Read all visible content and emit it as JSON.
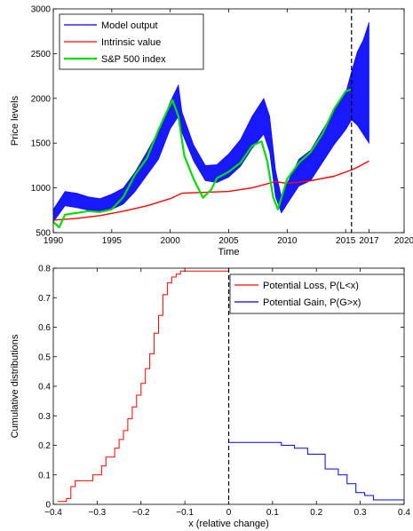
{
  "chart_data": [
    {
      "type": "line",
      "xlabel": "Time",
      "ylabel": "Price levels",
      "xlim": [
        1990,
        2020
      ],
      "ylim": [
        500,
        3000
      ],
      "xticks": [
        1990,
        1995,
        2000,
        2005,
        2010,
        2015,
        2017,
        2020
      ],
      "xtick_labels": [
        "1990",
        "1995",
        "2000",
        "2005",
        "2010",
        "2015",
        "2017",
        "2020"
      ],
      "yticks": [
        500,
        1000,
        1500,
        2000,
        2500,
        3000
      ],
      "ytick_labels": [
        "500",
        "1000",
        "1500",
        "2000",
        "2500",
        "3000"
      ],
      "grid": false,
      "legend_position": "top-left",
      "vline": {
        "x": 2015.5,
        "style": "dashed",
        "color": "#000000"
      },
      "series": [
        {
          "name": "Model output",
          "color": "#0000ff",
          "style": "band",
          "x": [
            1990,
            1991,
            1992,
            1993,
            1994,
            1995,
            1996,
            1997,
            1998,
            1999,
            2000,
            2000.7,
            2001,
            2002,
            2003,
            2004,
            2005,
            2006,
            2007,
            2008,
            2008.5,
            2009,
            2009.5,
            2010,
            2011,
            2012,
            2013,
            2014,
            2015,
            2015.5,
            2016,
            2016.5,
            2017
          ],
          "lower": [
            620,
            800,
            780,
            750,
            740,
            760,
            820,
            960,
            1140,
            1320,
            1660,
            1800,
            1620,
            1300,
            1080,
            1060,
            1120,
            1240,
            1440,
            1600,
            1400,
            900,
            720,
            820,
            1020,
            1080,
            1280,
            1480,
            1650,
            1760,
            1700,
            1600,
            1500
          ],
          "upper": [
            760,
            960,
            940,
            900,
            880,
            930,
            1000,
            1180,
            1400,
            1640,
            1960,
            2150,
            1850,
            1480,
            1250,
            1260,
            1380,
            1540,
            1800,
            2000,
            1800,
            1200,
            900,
            1050,
            1320,
            1420,
            1640,
            1860,
            2060,
            2300,
            2520,
            2650,
            2850
          ]
        },
        {
          "name": "Intrinsic value",
          "color": "#ff0000",
          "style": "line",
          "x": [
            1990,
            1992,
            1994,
            1996,
            1998,
            2000,
            2001,
            2003,
            2005,
            2007,
            2009,
            2010,
            2012,
            2014,
            2015.5,
            2016,
            2017
          ],
          "y": [
            640,
            660,
            690,
            740,
            800,
            880,
            940,
            950,
            960,
            1000,
            1070,
            1050,
            1080,
            1130,
            1200,
            1230,
            1300
          ]
        },
        {
          "name": "S&P 500 index",
          "color": "#00dd00",
          "style": "line",
          "x": [
            1990,
            1990.5,
            1991,
            1992,
            1993,
            1994,
            1995,
            1996,
            1997,
            1998,
            1999,
            1999.7,
            2000.2,
            2000.7,
            2001.2,
            2002,
            2002.8,
            2003.5,
            2004,
            2005,
            2006,
            2007,
            2007.8,
            2008.3,
            2008.8,
            2009.2,
            2010,
            2011,
            2012,
            2013,
            2014,
            2015,
            2015.5
          ],
          "y": [
            620,
            560,
            700,
            720,
            740,
            730,
            760,
            900,
            1150,
            1330,
            1650,
            1850,
            1980,
            1800,
            1360,
            1100,
            890,
            980,
            1110,
            1180,
            1280,
            1470,
            1520,
            1300,
            900,
            760,
            1100,
            1280,
            1400,
            1600,
            1880,
            2080,
            2100
          ]
        }
      ]
    },
    {
      "type": "line",
      "xlabel": "x (relative change)",
      "ylabel": "Cumulative distributions",
      "xlim": [
        -0.4,
        0.4
      ],
      "ylim": [
        0,
        0.8
      ],
      "xticks": [
        -0.4,
        -0.3,
        -0.2,
        -0.1,
        0,
        0.1,
        0.2,
        0.3,
        0.4
      ],
      "xtick_labels": [
        "−0.4",
        "−0.3",
        "−0.2",
        "−0.1",
        "0",
        "0.1",
        "0.2",
        "0.3",
        "0.4"
      ],
      "yticks": [
        0,
        0.1,
        0.2,
        0.3,
        0.4,
        0.5,
        0.6,
        0.7,
        0.8
      ],
      "ytick_labels": [
        "0",
        "0.1",
        "0.2",
        "0.3",
        "0.4",
        "0.5",
        "0.6",
        "0.7",
        "0.8"
      ],
      "grid": false,
      "legend_position": "top-right",
      "vline": {
        "x": 0,
        "style": "dashed",
        "color": "#000000"
      },
      "series": [
        {
          "name": "Potential Loss, P(L<x)",
          "color": "#ff0000",
          "style": "step",
          "x": [
            -0.39,
            -0.37,
            -0.36,
            -0.35,
            -0.33,
            -0.31,
            -0.29,
            -0.28,
            -0.26,
            -0.25,
            -0.24,
            -0.23,
            -0.22,
            -0.21,
            -0.2,
            -0.19,
            -0.18,
            -0.17,
            -0.16,
            -0.15,
            -0.14,
            -0.13,
            -0.12,
            -0.11,
            -0.1,
            -0.08,
            0
          ],
          "y": [
            0.01,
            0.02,
            0.06,
            0.08,
            0.08,
            0.1,
            0.13,
            0.16,
            0.19,
            0.22,
            0.25,
            0.29,
            0.33,
            0.37,
            0.41,
            0.46,
            0.51,
            0.58,
            0.64,
            0.71,
            0.75,
            0.77,
            0.78,
            0.79,
            0.79,
            0.79,
            0.79
          ]
        },
        {
          "name": "Potential Gain, P(G>x)",
          "color": "#0000ff",
          "style": "step",
          "x": [
            0,
            0.1,
            0.12,
            0.15,
            0.18,
            0.22,
            0.25,
            0.27,
            0.29,
            0.31,
            0.33,
            0.36,
            0.4
          ],
          "y": [
            0.21,
            0.21,
            0.2,
            0.19,
            0.17,
            0.12,
            0.1,
            0.07,
            0.04,
            0.03,
            0.015,
            0.015,
            0.015
          ]
        }
      ]
    }
  ]
}
